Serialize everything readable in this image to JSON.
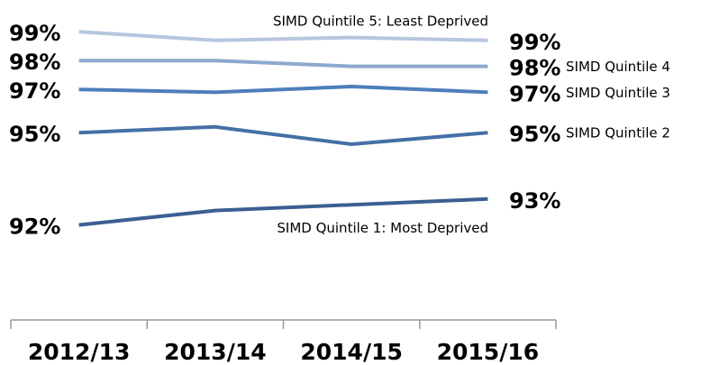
{
  "chart_data": {
    "type": "line",
    "categories": [
      "2012/13",
      "2013/14",
      "2014/15",
      "2015/16"
    ],
    "series": [
      {
        "name": "SIMD Quintile 1:  Most Deprived",
        "color": "#3b5f91",
        "values": [
          92.2,
          92.7,
          92.9,
          93.1
        ],
        "value_labels": [
          "92%",
          null,
          null,
          "93%"
        ]
      },
      {
        "name": "SIMD Quintile 2",
        "color": "#4570a6",
        "values": [
          95.4,
          95.6,
          95.0,
          95.4
        ],
        "value_labels": [
          "95%",
          null,
          null,
          "95%"
        ]
      },
      {
        "name": "SIMD Quintile 3",
        "color": "#4d7ebd",
        "values": [
          96.9,
          96.8,
          97.0,
          96.8
        ],
        "value_labels": [
          "97%",
          null,
          null,
          "97%"
        ]
      },
      {
        "name": "SIMD Quintile 4",
        "color": "#8ea8cf",
        "values": [
          97.9,
          97.9,
          97.7,
          97.7
        ],
        "value_labels": [
          "98%",
          null,
          null,
          "98%"
        ]
      },
      {
        "name": "SIMD Quintile 5:  Least Deprived",
        "color": "#b7c6df",
        "values": [
          98.9,
          98.6,
          98.7,
          98.6
        ],
        "value_labels": [
          "99%",
          null,
          null,
          "99%"
        ]
      }
    ],
    "ylim": [
      90,
      100
    ]
  }
}
